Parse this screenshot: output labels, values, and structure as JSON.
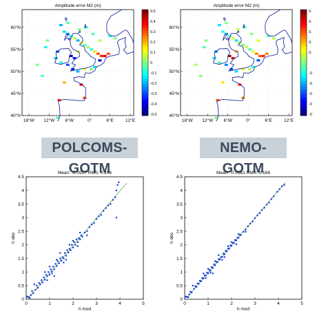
{
  "model_labels": [
    "POLCOMS-GOTM",
    "NEMO-GOTM"
  ],
  "colors": {
    "coast": "#1a30a0",
    "scatter": "#1838d8",
    "fit": "#3aa84a",
    "label_bg": "#c9d1d9",
    "label_text": "#3c4a5a"
  },
  "chart_data": [
    {
      "type": "heatmap",
      "title": "Amplitude error M2 (m)",
      "x_ticks": [
        "18°W",
        "12°W",
        "6°W",
        "0°",
        "6°E",
        "12°E"
      ],
      "y_ticks": [
        "40°N",
        "45°N",
        "50°N",
        "55°N",
        "60°N"
      ],
      "colorbar_ticks": [
        "0.5",
        "0.4",
        "0.3",
        "0.2",
        "0.1",
        "0",
        "-0.1",
        "-0.2",
        "-0.3",
        "-0.4",
        "-0.5"
      ],
      "xlim": [
        -20,
        13
      ],
      "ylim": [
        40,
        64
      ],
      "clim": [
        -0.5,
        0.5
      ],
      "cells": [
        [
          -7.5,
          59.0,
          -0.15
        ],
        [
          -6.5,
          58.5,
          -0.25
        ],
        [
          -5.5,
          58.0,
          -0.1
        ],
        [
          -4.5,
          57.5,
          0.05
        ],
        [
          -3.5,
          57.0,
          -0.2
        ],
        [
          -2.5,
          56.5,
          0.1
        ],
        [
          -1.5,
          56.0,
          -0.05
        ],
        [
          -0.5,
          55.5,
          0.02
        ],
        [
          0.5,
          55.0,
          -0.1
        ],
        [
          1.5,
          54.5,
          0.15
        ],
        [
          2.5,
          54.0,
          0.3
        ],
        [
          3.5,
          53.5,
          0.35
        ],
        [
          4.5,
          53.5,
          0.4
        ],
        [
          5.5,
          54.0,
          0.3
        ],
        [
          3.0,
          52.5,
          -0.4
        ],
        [
          -9.5,
          54.5,
          -0.3
        ],
        [
          -10.0,
          53.0,
          -0.2
        ],
        [
          -8.5,
          52.0,
          -0.1
        ],
        [
          -6.5,
          51.5,
          -0.3
        ],
        [
          -5.0,
          50.5,
          -0.35
        ],
        [
          -3.5,
          50.0,
          -0.2
        ],
        [
          -1.5,
          50.5,
          0.1
        ],
        [
          0.5,
          50.5,
          0.0
        ],
        [
          1.5,
          51.0,
          -0.15
        ],
        [
          -5.5,
          53.5,
          -0.45
        ],
        [
          -4.5,
          53.0,
          -0.4
        ],
        [
          -3.5,
          54.5,
          0.1
        ],
        [
          -12.5,
          57.0,
          0.0
        ],
        [
          -13.0,
          55.5,
          -0.1
        ],
        [
          -8.5,
          60.5,
          -0.2
        ],
        [
          -6.5,
          61.0,
          -0.05
        ],
        [
          -3.0,
          59.5,
          0.0
        ],
        [
          -1.0,
          60.0,
          -0.1
        ],
        [
          1.0,
          58.5,
          -0.05
        ],
        [
          3.0,
          57.0,
          0.05
        ],
        [
          6.0,
          58.0,
          -0.1
        ],
        [
          7.5,
          57.5,
          0.0
        ],
        [
          -7.5,
          47.5,
          0.2
        ],
        [
          -2.5,
          47.0,
          0.4
        ],
        [
          -9.0,
          43.5,
          0.35
        ],
        [
          -1.5,
          44.0,
          0.3
        ],
        [
          -9.5,
          39.5,
          -0.05
        ],
        [
          -14.0,
          49.0,
          -0.05
        ],
        [
          -15.5,
          51.5,
          0.0
        ]
      ]
    },
    {
      "type": "heatmap",
      "title": "Amplitude error M2 (m)",
      "x_ticks": [
        "18°W",
        "12°W",
        "6°W",
        "0°",
        "6°E",
        "12°E"
      ],
      "y_ticks": [
        "40°N",
        "45°N",
        "50°N",
        "55°N",
        "60°N"
      ],
      "colorbar_ticks": [
        "0.",
        "0.",
        "0.",
        "0.",
        "0.",
        "",
        "-0",
        "-0",
        "-0",
        "-0",
        "-0"
      ],
      "xlim": [
        -20,
        13
      ],
      "ylim": [
        40,
        64
      ],
      "clim": [
        -0.5,
        0.5
      ],
      "cells": [
        [
          -7.5,
          59.0,
          -0.1
        ],
        [
          -6.5,
          58.5,
          -0.2
        ],
        [
          -5.5,
          58.0,
          -0.05
        ],
        [
          -4.5,
          57.5,
          0.1
        ],
        [
          -3.5,
          57.0,
          -0.15
        ],
        [
          -2.5,
          56.5,
          0.05
        ],
        [
          -1.5,
          56.0,
          0.0
        ],
        [
          -0.5,
          55.5,
          0.05
        ],
        [
          0.5,
          55.0,
          -0.05
        ],
        [
          1.5,
          54.5,
          0.1
        ],
        [
          2.5,
          54.0,
          0.25
        ],
        [
          3.5,
          53.5,
          0.3
        ],
        [
          4.5,
          53.5,
          0.35
        ],
        [
          5.5,
          54.0,
          0.25
        ],
        [
          3.0,
          52.5,
          -0.3
        ],
        [
          -9.5,
          54.5,
          -0.25
        ],
        [
          -10.0,
          53.0,
          -0.15
        ],
        [
          -8.5,
          52.0,
          -0.05
        ],
        [
          -6.5,
          51.5,
          -0.25
        ],
        [
          -5.0,
          50.5,
          -0.3
        ],
        [
          -3.5,
          50.0,
          -0.15
        ],
        [
          -1.5,
          50.5,
          0.1
        ],
        [
          0.5,
          50.5,
          0.05
        ],
        [
          1.5,
          51.0,
          -0.1
        ],
        [
          -5.5,
          53.5,
          0.45
        ],
        [
          -4.5,
          53.0,
          0.4
        ],
        [
          -3.5,
          54.5,
          0.2
        ],
        [
          -12.5,
          57.0,
          0.0
        ],
        [
          -13.0,
          55.5,
          -0.05
        ],
        [
          -8.5,
          60.5,
          -0.15
        ],
        [
          -6.5,
          61.0,
          0.0
        ],
        [
          -3.0,
          59.5,
          0.05
        ],
        [
          -1.0,
          60.0,
          -0.05
        ],
        [
          1.0,
          58.5,
          0.0
        ],
        [
          3.0,
          57.0,
          0.1
        ],
        [
          6.0,
          58.0,
          -0.05
        ],
        [
          7.5,
          57.5,
          0.05
        ],
        [
          -7.5,
          47.5,
          0.15
        ],
        [
          -2.5,
          47.0,
          0.35
        ],
        [
          -9.0,
          43.5,
          0.3
        ],
        [
          -1.5,
          44.0,
          0.25
        ],
        [
          -9.5,
          39.5,
          0.0
        ],
        [
          -14.0,
          49.0,
          0.0
        ],
        [
          -15.5,
          51.5,
          0.05
        ]
      ]
    },
    {
      "type": "scatter",
      "title": "Mean: -0.0927 RMS: 0.206",
      "xlabel": "h mod",
      "ylabel": "h obs",
      "xlim": [
        0,
        5
      ],
      "ylim": [
        0,
        4.5
      ],
      "x_ticks": [
        "0",
        "1",
        "2",
        "3",
        "4",
        "5"
      ],
      "y_ticks": [
        "0",
        "0.5",
        "1",
        "1.5",
        "2",
        "2.5",
        "3",
        "3.5",
        "4",
        "4.5"
      ],
      "fit_line": [
        [
          0.08,
          0.04
        ],
        [
          4.3,
          4.28
        ]
      ],
      "points": [
        [
          0.1,
          0.08
        ],
        [
          0.2,
          0.15
        ],
        [
          0.25,
          0.3
        ],
        [
          0.3,
          0.22
        ],
        [
          0.4,
          0.35
        ],
        [
          0.45,
          0.5
        ],
        [
          0.5,
          0.42
        ],
        [
          0.55,
          0.6
        ],
        [
          0.6,
          0.55
        ],
        [
          0.65,
          0.7
        ],
        [
          0.7,
          0.62
        ],
        [
          0.75,
          0.8
        ],
        [
          0.8,
          0.72
        ],
        [
          0.85,
          0.9
        ],
        [
          0.9,
          0.85
        ],
        [
          0.95,
          1.0
        ],
        [
          1.0,
          0.9
        ],
        [
          1.05,
          1.1
        ],
        [
          1.1,
          1.02
        ],
        [
          1.15,
          1.2
        ],
        [
          1.2,
          1.1
        ],
        [
          1.25,
          1.3
        ],
        [
          1.3,
          1.22
        ],
        [
          1.35,
          1.4
        ],
        [
          1.4,
          1.32
        ],
        [
          1.45,
          1.5
        ],
        [
          1.5,
          1.42
        ],
        [
          1.55,
          1.55
        ],
        [
          1.6,
          1.5
        ],
        [
          1.65,
          1.7
        ],
        [
          1.7,
          1.6
        ],
        [
          1.75,
          1.8
        ],
        [
          1.8,
          1.72
        ],
        [
          1.85,
          1.85
        ],
        [
          1.9,
          1.8
        ],
        [
          1.95,
          2.0
        ],
        [
          2.0,
          1.9
        ],
        [
          2.05,
          2.1
        ],
        [
          2.1,
          2.0
        ],
        [
          2.15,
          2.2
        ],
        [
          2.2,
          2.1
        ],
        [
          2.25,
          2.25
        ],
        [
          2.3,
          2.2
        ],
        [
          2.35,
          2.35
        ],
        [
          2.4,
          2.3
        ],
        [
          2.5,
          2.45
        ],
        [
          2.6,
          2.5
        ],
        [
          2.7,
          2.65
        ],
        [
          2.8,
          2.75
        ],
        [
          2.9,
          2.8
        ],
        [
          3.0,
          2.95
        ],
        [
          3.1,
          3.05
        ],
        [
          3.2,
          3.1
        ],
        [
          3.3,
          3.25
        ],
        [
          3.4,
          3.35
        ],
        [
          3.5,
          3.45
        ],
        [
          3.6,
          3.5
        ],
        [
          3.7,
          3.65
        ],
        [
          3.8,
          3.75
        ],
        [
          3.85,
          4.0
        ],
        [
          3.9,
          4.2
        ],
        [
          3.95,
          4.3
        ],
        [
          3.85,
          3.0
        ],
        [
          1.2,
          0.85
        ],
        [
          0.35,
          0.55
        ],
        [
          0.15,
          0.05
        ],
        [
          0.05,
          0.1
        ],
        [
          1.45,
          1.7
        ],
        [
          1.7,
          1.45
        ],
        [
          2.0,
          2.15
        ],
        [
          2.2,
          1.95
        ],
        [
          0.8,
          1.0
        ],
        [
          0.9,
          0.7
        ],
        [
          1.0,
          1.2
        ],
        [
          1.1,
          0.95
        ],
        [
          1.3,
          1.45
        ],
        [
          1.6,
          1.35
        ],
        [
          1.85,
          2.0
        ],
        [
          2.3,
          2.45
        ],
        [
          2.6,
          2.35
        ]
      ]
    },
    {
      "type": "scatter",
      "title": "Mean: -0.0361 RMS: 0.168",
      "xlabel": "h mod",
      "ylabel": "h obs",
      "xlim": [
        0,
        5
      ],
      "ylim": [
        0,
        4.5
      ],
      "x_ticks": [
        "0",
        "1",
        "2",
        "3",
        "4",
        "5"
      ],
      "y_ticks": [
        "0",
        "0.5",
        "1",
        "1.5",
        "2",
        "2.5",
        "3",
        "3.5",
        "4",
        "4.5"
      ],
      "fit_line": [
        [
          0.08,
          0.05
        ],
        [
          4.3,
          4.3
        ]
      ],
      "points": [
        [
          0.1,
          0.08
        ],
        [
          0.2,
          0.18
        ],
        [
          0.25,
          0.28
        ],
        [
          0.3,
          0.25
        ],
        [
          0.4,
          0.38
        ],
        [
          0.45,
          0.48
        ],
        [
          0.5,
          0.45
        ],
        [
          0.55,
          0.58
        ],
        [
          0.6,
          0.57
        ],
        [
          0.65,
          0.68
        ],
        [
          0.7,
          0.66
        ],
        [
          0.75,
          0.78
        ],
        [
          0.8,
          0.76
        ],
        [
          0.85,
          0.88
        ],
        [
          0.9,
          0.87
        ],
        [
          0.95,
          0.98
        ],
        [
          1.0,
          0.95
        ],
        [
          1.05,
          1.08
        ],
        [
          1.1,
          1.05
        ],
        [
          1.15,
          1.18
        ],
        [
          1.2,
          1.15
        ],
        [
          1.25,
          1.28
        ],
        [
          1.3,
          1.25
        ],
        [
          1.35,
          1.38
        ],
        [
          1.4,
          1.36
        ],
        [
          1.45,
          1.48
        ],
        [
          1.5,
          1.46
        ],
        [
          1.55,
          1.55
        ],
        [
          1.6,
          1.56
        ],
        [
          1.65,
          1.68
        ],
        [
          1.7,
          1.65
        ],
        [
          1.75,
          1.78
        ],
        [
          1.8,
          1.76
        ],
        [
          1.85,
          1.86
        ],
        [
          1.9,
          1.86
        ],
        [
          1.95,
          1.98
        ],
        [
          2.0,
          1.96
        ],
        [
          2.05,
          2.08
        ],
        [
          2.1,
          2.06
        ],
        [
          2.15,
          2.18
        ],
        [
          2.2,
          2.16
        ],
        [
          2.25,
          2.26
        ],
        [
          2.3,
          2.26
        ],
        [
          2.35,
          2.36
        ],
        [
          2.4,
          2.36
        ],
        [
          2.5,
          2.48
        ],
        [
          2.6,
          2.56
        ],
        [
          2.7,
          2.68
        ],
        [
          2.8,
          2.78
        ],
        [
          2.9,
          2.86
        ],
        [
          3.0,
          2.98
        ],
        [
          3.1,
          3.08
        ],
        [
          3.2,
          3.16
        ],
        [
          3.3,
          3.28
        ],
        [
          3.4,
          3.36
        ],
        [
          3.5,
          3.48
        ],
        [
          3.6,
          3.55
        ],
        [
          3.7,
          3.68
        ],
        [
          3.8,
          3.78
        ],
        [
          3.95,
          3.95
        ],
        [
          4.05,
          4.05
        ],
        [
          4.15,
          4.15
        ],
        [
          4.25,
          4.2
        ],
        [
          1.2,
          0.95
        ],
        [
          0.35,
          0.5
        ],
        [
          0.15,
          0.08
        ],
        [
          0.05,
          0.1
        ],
        [
          1.45,
          1.62
        ],
        [
          1.7,
          1.55
        ],
        [
          2.0,
          2.1
        ],
        [
          2.2,
          2.02
        ],
        [
          0.8,
          0.95
        ],
        [
          0.9,
          0.78
        ],
        [
          1.0,
          1.12
        ],
        [
          1.1,
          0.98
        ],
        [
          1.3,
          1.4
        ],
        [
          1.6,
          1.45
        ],
        [
          1.85,
          1.95
        ],
        [
          2.3,
          2.4
        ],
        [
          2.6,
          2.48
        ]
      ]
    }
  ]
}
